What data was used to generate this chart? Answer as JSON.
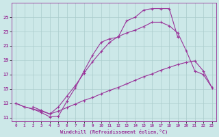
{
  "bg_color": "#cce8e8",
  "grid_color": "#aacccc",
  "line_color": "#993399",
  "xlabel": "Windchill (Refroidissement éolien,°C)",
  "xlim": [
    -0.5,
    23.5
  ],
  "ylim": [
    10.5,
    27.0
  ],
  "xticks": [
    0,
    1,
    2,
    3,
    4,
    5,
    6,
    7,
    8,
    9,
    10,
    11,
    12,
    13,
    14,
    15,
    16,
    17,
    18,
    19,
    20,
    21,
    22,
    23
  ],
  "yticks": [
    11,
    13,
    15,
    17,
    19,
    21,
    23,
    25
  ],
  "line_top_x": [
    0,
    1,
    2,
    3,
    4,
    5,
    6,
    7,
    8,
    9,
    10,
    11,
    12,
    13,
    14,
    15,
    16,
    17,
    18,
    19
  ],
  "line_top_y": [
    13.0,
    12.5,
    12.2,
    11.7,
    11.1,
    11.2,
    13.3,
    15.2,
    17.5,
    19.7,
    21.5,
    22.0,
    22.2,
    24.5,
    25.0,
    26.0,
    26.2,
    26.2,
    26.2,
    22.2
  ],
  "line_mid_x": [
    2,
    3,
    4,
    5,
    6,
    7,
    8,
    9,
    10,
    11,
    12,
    13,
    14,
    15,
    16,
    17,
    18,
    19,
    20,
    21,
    22,
    23
  ],
  "line_mid_y": [
    12.5,
    12.0,
    11.5,
    12.5,
    14.0,
    15.5,
    17.2,
    18.8,
    20.2,
    21.5,
    22.3,
    22.8,
    23.2,
    23.7,
    24.3,
    24.3,
    23.8,
    22.8,
    20.3,
    17.5,
    17.0,
    15.2
  ],
  "line_bot_x": [
    0,
    1,
    2,
    3,
    4,
    5,
    6,
    7,
    8,
    9,
    10,
    11,
    12,
    13,
    14,
    15,
    16,
    17,
    18,
    19,
    20,
    21,
    22,
    23
  ],
  "line_bot_y": [
    13.0,
    12.5,
    12.2,
    11.9,
    11.5,
    11.9,
    12.4,
    12.9,
    13.4,
    13.8,
    14.3,
    14.8,
    15.2,
    15.7,
    16.2,
    16.7,
    17.1,
    17.6,
    18.0,
    18.4,
    18.7,
    18.9,
    17.5,
    15.2
  ]
}
